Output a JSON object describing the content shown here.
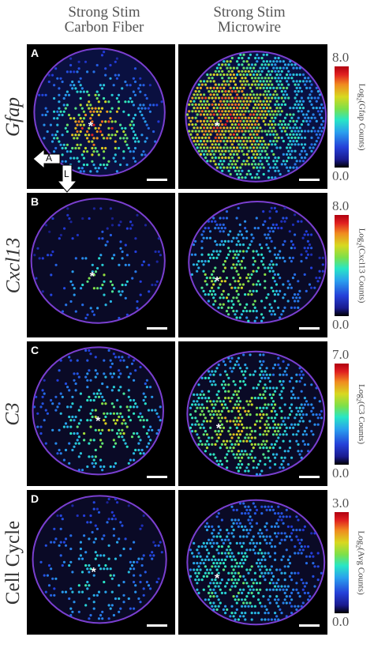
{
  "column_headers": [
    {
      "line1": "Strong Stim",
      "line2": "Carbon Fiber"
    },
    {
      "line1": "Strong Stim",
      "line2": "Microwire"
    }
  ],
  "rows": [
    {
      "letter": "A",
      "gene": "Gfap",
      "gene_italic": true,
      "cb_max": "8.0",
      "cb_min": "0.0",
      "cb_prefix": "Log",
      "cb_sub": "2",
      "cb_suffix": "(Gfap Counts)"
    },
    {
      "letter": "B",
      "gene": "Cxcl13",
      "gene_italic": true,
      "cb_max": "8.0",
      "cb_min": "0.0",
      "cb_prefix": "Log",
      "cb_sub": "2",
      "cb_suffix": "(Cxcl13 Counts)"
    },
    {
      "letter": "C",
      "gene": "C3",
      "gene_italic": true,
      "cb_max": "7.0",
      "cb_min": "0.0",
      "cb_prefix": "Log",
      "cb_sub": "2",
      "cb_suffix": "(C3 Counts)"
    },
    {
      "letter": "D",
      "gene": "Cell Cycle",
      "gene_italic": false,
      "cb_max": "3.0",
      "cb_min": "0.0",
      "cb_prefix": "Log",
      "cb_sub": "2",
      "cb_suffix": "(Avg Counts)"
    }
  ],
  "orientation_arrows": {
    "anterior": "A",
    "lateral": "L"
  },
  "marker_symbol": "*",
  "colors": {
    "hot": "#e02020",
    "warm": "#d8d820",
    "mid": "#28e6c6",
    "cool": "#2540d8",
    "edge": "#7a3fd0"
  }
}
